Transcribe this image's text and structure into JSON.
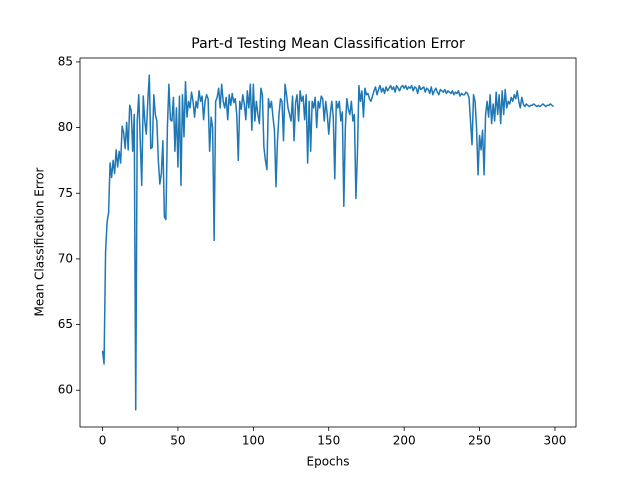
{
  "chart_data": {
    "type": "line",
    "title": "Part-d Testing Mean Classification Error",
    "xlabel": "Epochs",
    "ylabel": "Mean Classification Error",
    "xlim": [
      -14.95,
      313.95
    ],
    "ylim": [
      57.2,
      85.3
    ],
    "xticks": [
      0,
      50,
      100,
      150,
      200,
      250,
      300
    ],
    "yticks": [
      60,
      65,
      70,
      75,
      80,
      85
    ],
    "series": [
      {
        "color": "#1f77b4",
        "x": [
          0,
          1,
          2,
          3,
          4,
          5,
          6,
          7,
          8,
          9,
          10,
          11,
          12,
          13,
          14,
          15,
          16,
          17,
          18,
          19,
          20,
          21,
          22,
          23,
          24,
          25,
          26,
          27,
          28,
          29,
          30,
          31,
          32,
          33,
          34,
          35,
          36,
          37,
          38,
          39,
          40,
          41,
          42,
          43,
          44,
          45,
          46,
          47,
          48,
          49,
          50,
          51,
          52,
          53,
          54,
          55,
          56,
          57,
          58,
          59,
          60,
          61,
          62,
          63,
          64,
          65,
          66,
          67,
          68,
          69,
          70,
          71,
          72,
          73,
          74,
          75,
          76,
          77,
          78,
          79,
          80,
          81,
          82,
          83,
          84,
          85,
          86,
          87,
          88,
          89,
          90,
          91,
          92,
          93,
          94,
          95,
          96,
          97,
          98,
          99,
          100,
          101,
          102,
          103,
          104,
          105,
          106,
          107,
          108,
          109,
          110,
          111,
          112,
          113,
          114,
          115,
          116,
          117,
          118,
          119,
          120,
          121,
          122,
          123,
          124,
          125,
          126,
          127,
          128,
          129,
          130,
          131,
          132,
          133,
          134,
          135,
          136,
          137,
          138,
          139,
          140,
          141,
          142,
          143,
          144,
          145,
          146,
          147,
          148,
          149,
          150,
          151,
          152,
          153,
          154,
          155,
          156,
          157,
          158,
          159,
          160,
          161,
          162,
          163,
          164,
          165,
          166,
          167,
          168,
          169,
          170,
          171,
          172,
          173,
          174,
          175,
          176,
          177,
          178,
          179,
          180,
          181,
          182,
          183,
          184,
          185,
          186,
          187,
          188,
          189,
          190,
          191,
          192,
          193,
          194,
          195,
          196,
          197,
          198,
          199,
          200,
          201,
          202,
          203,
          204,
          205,
          206,
          207,
          208,
          209,
          210,
          211,
          212,
          213,
          214,
          215,
          216,
          217,
          218,
          219,
          220,
          221,
          222,
          223,
          224,
          225,
          226,
          227,
          228,
          229,
          230,
          231,
          232,
          233,
          234,
          235,
          236,
          237,
          238,
          239,
          240,
          241,
          242,
          243,
          244,
          245,
          246,
          247,
          248,
          249,
          250,
          251,
          252,
          253,
          254,
          255,
          256,
          257,
          258,
          259,
          260,
          261,
          262,
          263,
          264,
          265,
          266,
          267,
          268,
          269,
          270,
          271,
          272,
          273,
          274,
          275,
          276,
          277,
          278,
          279,
          280,
          281,
          282,
          283,
          284,
          285,
          286,
          287,
          288,
          289,
          290,
          291,
          292,
          293,
          294,
          295,
          296,
          297,
          298,
          299
        ],
        "values": [
          63,
          62,
          70.5,
          72.8,
          73.5,
          77.3,
          76.2,
          77.5,
          76.5,
          78.3,
          77.0,
          78.2,
          77.3,
          80.1,
          79.6,
          78.4,
          80.4,
          78.3,
          81.7,
          81.3,
          78.2,
          81.0,
          58.5,
          80.5,
          82.5,
          79.0,
          75.6,
          82.4,
          80.5,
          79.5,
          82.0,
          84.0,
          78.4,
          78.5,
          82.5,
          81.0,
          80.5,
          77.5,
          75.7,
          76.5,
          79.0,
          73.2,
          73.0,
          80.0,
          83.3,
          80.6,
          80.5,
          82.3,
          78.2,
          81.5,
          77.0,
          82.4,
          75.6,
          82.5,
          79.3,
          83.5,
          80.8,
          82.0,
          81.5,
          82.7,
          82.0,
          80.8,
          82.0,
          81.5,
          82.8,
          82.0,
          82.4,
          80.6,
          82.0,
          82.5,
          82.2,
          78.2,
          80.8,
          80.0,
          71.4,
          82.0,
          82.3,
          83.0,
          81.5,
          83.3,
          82.0,
          81.5,
          82.3,
          80.6,
          82.5,
          81.7,
          82.6,
          81.9,
          82.2,
          81.0,
          77.5,
          82.0,
          81.4,
          82.5,
          81.8,
          80.6,
          82.8,
          81.5,
          83.3,
          79.8,
          83.3,
          80.5,
          82.0,
          81.0,
          80.3,
          83.0,
          82.5,
          78.5,
          77.5,
          76.8,
          82.2,
          81.5,
          82.0,
          80.8,
          79.8,
          75.5,
          79.0,
          81.0,
          82.2,
          82.0,
          79.0,
          83.3,
          82.5,
          81.5,
          81.0,
          80.5,
          82.4,
          79.0,
          81.9,
          82.5,
          80.5,
          82.8,
          82.0,
          82.4,
          80.6,
          82.5,
          77.3,
          82.0,
          78.2,
          82.0,
          81.5,
          82.3,
          80.0,
          82.0,
          81.5,
          82.4,
          82.2,
          80.5,
          82.0,
          81.0,
          79.5,
          81.0,
          82.0,
          80.8,
          76.1,
          82.0,
          81.5,
          82.0,
          80.5,
          81.2,
          74.0,
          80.0,
          82.2,
          81.4,
          81.0,
          82.0,
          80.5,
          81.0,
          74.6,
          78.0,
          83.2,
          82.0,
          82.8,
          80.8,
          83.0,
          82.5,
          82.6,
          82.2,
          82.0,
          82.4,
          82.8,
          83.1,
          82.5,
          82.9,
          83.2,
          82.7,
          83.0,
          82.6,
          83.1,
          82.8,
          83.0,
          83.2,
          82.9,
          83.1,
          82.7,
          83.2,
          83.0,
          82.8,
          83.1,
          83.2,
          83.0,
          83.2,
          82.9,
          83.1,
          83.0,
          83.2,
          82.8,
          83.1,
          83.0,
          82.6,
          83.2,
          82.9,
          83.0,
          83.1,
          82.7,
          83.0,
          82.9,
          82.6,
          83.1,
          82.5,
          82.8,
          83.0,
          82.7,
          82.5,
          82.9,
          82.8,
          82.7,
          82.9,
          82.6,
          82.8,
          82.7,
          82.6,
          82.8,
          82.5,
          82.7,
          82.6,
          82.8,
          82.4,
          82.6,
          82.5,
          82.5,
          82.7,
          82.6,
          82.3,
          80.5,
          78.7,
          82.5,
          82.0,
          80.0,
          76.4,
          79.4,
          78.3,
          79.8,
          76.4,
          81.0,
          82.0,
          80.8,
          82.5,
          80.3,
          81.8,
          80.5,
          82.7,
          81.0,
          82.5,
          80.3,
          82.8,
          81.0,
          82.9,
          81.5,
          82.0,
          81.8,
          82.3,
          82.0,
          82.5,
          82.2,
          82.8,
          82.0,
          81.5,
          82.3,
          81.8,
          81.6,
          81.8,
          81.7,
          81.6,
          81.7,
          81.7,
          81.8,
          81.7,
          81.6,
          81.7,
          81.6,
          81.7,
          81.8,
          81.7,
          81.6,
          81.7,
          81.7,
          81.8,
          81.7,
          81.6
        ]
      }
    ]
  }
}
